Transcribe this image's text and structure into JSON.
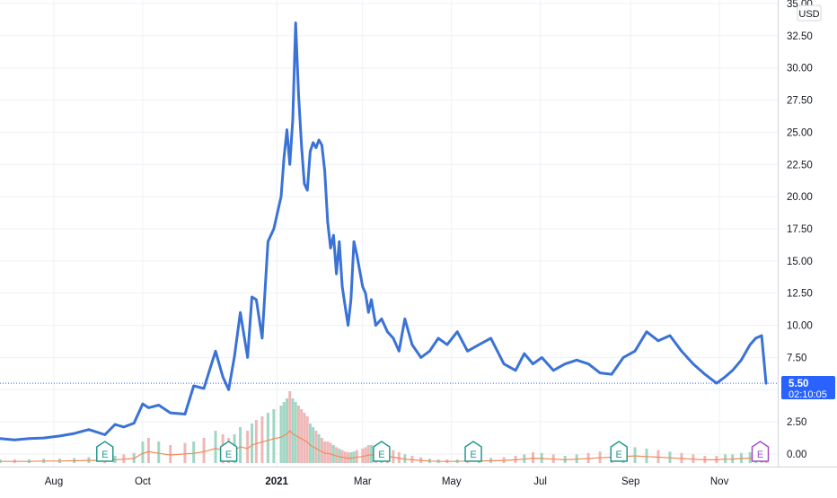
{
  "colors": {
    "price_line": "#3a72d6",
    "volume_avg": "#f08a5a",
    "volume_up": "#9fd7c4",
    "volume_down": "#f0b7b7",
    "price_label_bg": "#2962ff",
    "earnings_teal": "#22998e",
    "earnings_purple": "#a34ac7",
    "grid": "#eef1f5",
    "axis_text": "#131722"
  },
  "price_scale": {
    "currency": "USD",
    "current_price": "5.50",
    "countdown": "02:10:05"
  },
  "earnings_markers": [
    {
      "label": "E",
      "date": "2020-09-05",
      "color": "teal"
    },
    {
      "label": "E",
      "date": "2020-11-29",
      "color": "teal"
    },
    {
      "label": "E",
      "date": "2021-03-14",
      "color": "teal"
    },
    {
      "label": "E",
      "date": "2021-05-16",
      "color": "teal"
    },
    {
      "label": "E",
      "date": "2021-08-24",
      "color": "teal"
    },
    {
      "label": "E",
      "date": "2021-11-29",
      "color": "purple"
    }
  ],
  "chart_data": {
    "type": "line",
    "series": [
      {
        "x": [
          "2020-06-25",
          "2020-07-05",
          "2020-07-15",
          "2020-07-25",
          "2020-08-05",
          "2020-08-15",
          "2020-08-25",
          "2020-09-05",
          "2020-09-12",
          "2020-09-18",
          "2020-09-25",
          "2020-10-01",
          "2020-10-05",
          "2020-10-12",
          "2020-10-20",
          "2020-10-30",
          "2020-11-05",
          "2020-11-12",
          "2020-11-20",
          "2020-11-25",
          "2020-11-29",
          "2020-12-03",
          "2020-12-07",
          "2020-12-12",
          "2020-12-15",
          "2020-12-18",
          "2020-12-22",
          "2020-12-26",
          "2020-12-30",
          "2021-01-04",
          "2021-01-06",
          "2021-01-08",
          "2021-01-10",
          "2021-01-12",
          "2021-01-14",
          "2021-01-16",
          "2021-01-18",
          "2021-01-20",
          "2021-01-22",
          "2021-01-24",
          "2021-01-26",
          "2021-01-28",
          "2021-01-30",
          "2021-02-01",
          "2021-02-03",
          "2021-02-05",
          "2021-02-07",
          "2021-02-09",
          "2021-02-11",
          "2021-02-13",
          "2021-02-15",
          "2021-02-17",
          "2021-02-19",
          "2021-02-21",
          "2021-02-23",
          "2021-02-25",
          "2021-03-01",
          "2021-03-03",
          "2021-03-05",
          "2021-03-07",
          "2021-03-10",
          "2021-03-14",
          "2021-03-18",
          "2021-03-22",
          "2021-03-26",
          "2021-03-30",
          "2021-04-04",
          "2021-04-10",
          "2021-04-16",
          "2021-04-22",
          "2021-04-28",
          "2021-05-05",
          "2021-05-12",
          "2021-05-20",
          "2021-05-28",
          "2021-06-06",
          "2021-06-14",
          "2021-06-20",
          "2021-06-26",
          "2021-07-02",
          "2021-07-10",
          "2021-07-18",
          "2021-07-26",
          "2021-08-03",
          "2021-08-11",
          "2021-08-19",
          "2021-08-27",
          "2021-09-04",
          "2021-09-12",
          "2021-09-20",
          "2021-09-28",
          "2021-10-06",
          "2021-10-14",
          "2021-10-22",
          "2021-10-30",
          "2021-11-05",
          "2021-11-10",
          "2021-11-16",
          "2021-11-22",
          "2021-11-26",
          "2021-11-30",
          "2021-12-03"
        ],
        "y": [
          1.2,
          1.1,
          1.2,
          1.25,
          1.4,
          1.6,
          1.9,
          1.5,
          2.3,
          2.1,
          2.4,
          3.9,
          3.6,
          3.8,
          3.2,
          3.1,
          5.3,
          5.1,
          8.0,
          6.0,
          5.0,
          7.6,
          11.0,
          7.5,
          12.2,
          12.0,
          9.0,
          16.5,
          17.5,
          20.0,
          23.0,
          25.2,
          22.5,
          26.0,
          33.5,
          28.0,
          24.0,
          21.0,
          20.5,
          23.5,
          24.2,
          23.8,
          24.4,
          24.0,
          22.0,
          18.0,
          16.0,
          17.0,
          14.0,
          16.5,
          13.0,
          11.5,
          10.0,
          12.0,
          16.5,
          15.5,
          13.0,
          12.5,
          11.0,
          12.0,
          10.0,
          10.5,
          9.5,
          9.0,
          8.0,
          10.5,
          8.5,
          7.5,
          8.0,
          9.0,
          8.5,
          9.5,
          8.0,
          8.5,
          9.0,
          7.0,
          6.5,
          7.8,
          7.0,
          7.5,
          6.5,
          7.0,
          7.3,
          7.0,
          6.3,
          6.2,
          7.5,
          8.0,
          9.5,
          8.8,
          9.2,
          8.0,
          7.0,
          6.2,
          5.5,
          6.0,
          6.5,
          7.3,
          8.5,
          9.0,
          9.2,
          5.5
        ]
      }
    ],
    "volume": {
      "x_note": "",
      "values_rel": [
        0.05,
        0.05,
        0.05,
        0.06,
        0.06,
        0.07,
        0.08,
        0.08,
        0.1,
        0.12,
        0.14,
        0.3,
        0.35,
        0.3,
        0.25,
        0.28,
        0.3,
        0.35,
        0.45,
        0.4,
        0.35,
        0.4,
        0.5,
        0.45,
        0.55,
        0.6,
        0.65,
        0.7,
        0.75,
        0.8,
        0.85,
        0.9,
        1.0,
        0.9,
        0.85,
        0.8,
        0.75,
        0.7,
        0.65,
        0.55,
        0.5,
        0.45,
        0.4,
        0.35,
        0.3,
        0.3,
        0.28,
        0.25,
        0.22,
        0.2,
        0.18,
        0.16,
        0.15,
        0.15,
        0.16,
        0.18,
        0.2,
        0.22,
        0.25,
        0.25,
        0.24,
        0.22,
        0.2,
        0.18,
        0.15,
        0.12,
        0.1,
        0.08,
        0.06,
        0.05,
        0.05,
        0.05,
        0.06,
        0.06,
        0.07,
        0.08,
        0.1,
        0.12,
        0.15,
        0.14,
        0.12,
        0.1,
        0.12,
        0.14,
        0.16,
        0.18,
        0.2,
        0.22,
        0.2,
        0.18,
        0.16,
        0.14,
        0.12,
        0.1,
        0.1,
        0.12,
        0.12,
        0.14,
        0.15,
        0.15,
        0.14,
        0.12
      ]
    },
    "x_ticks": [
      "Aug",
      "Oct",
      "2021",
      "Mar",
      "May",
      "Jul",
      "Sep",
      "Nov"
    ],
    "y_ticks": [
      "35.00",
      "32.50",
      "30.00",
      "27.50",
      "25.00",
      "22.50",
      "20.00",
      "17.50",
      "15.00",
      "12.50",
      "10.00",
      "7.50",
      "5.00",
      "2.50",
      "0.00"
    ],
    "ylim": [
      0,
      35
    ],
    "grid": true,
    "legend": "none"
  }
}
